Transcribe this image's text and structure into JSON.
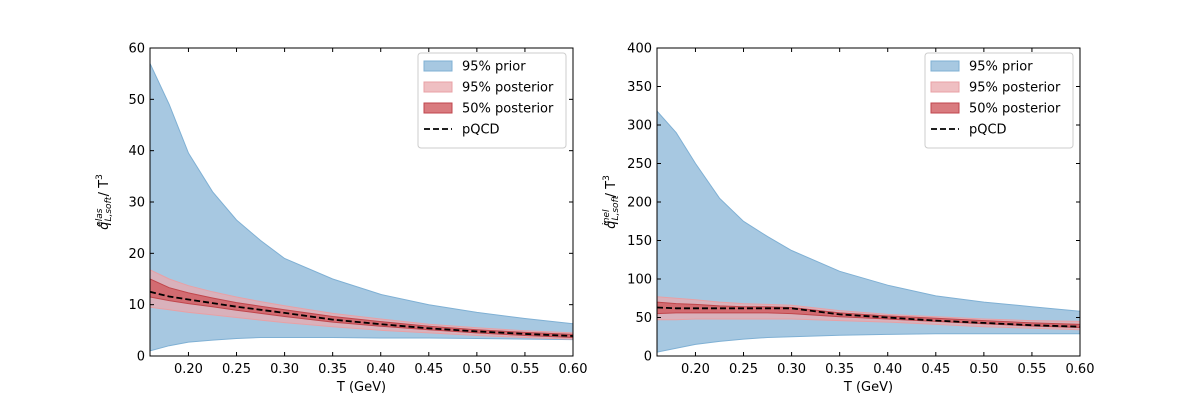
{
  "figure": {
    "panels": [
      {
        "xlabel": "T (GeV)",
        "ylabel": {
          "main": "q̂",
          "sub": "L,soft",
          "sup": "elas",
          "suffix": " / T",
          "suffix_sup": "3"
        },
        "legend": [
          {
            "label": "95% prior",
            "kind": "prior95"
          },
          {
            "label": "95% posterior",
            "kind": "post95"
          },
          {
            "label": "50% posterior",
            "kind": "post50"
          },
          {
            "label": "pQCD",
            "kind": "pqcd"
          }
        ]
      },
      {
        "xlabel": "T (GeV)",
        "ylabel": {
          "main": "q̂",
          "sub": "L,soft",
          "sup": "inel",
          "suffix": " / T",
          "suffix_sup": "3"
        },
        "legend": [
          {
            "label": "95% prior",
            "kind": "prior95"
          },
          {
            "label": "95% posterior",
            "kind": "post95"
          },
          {
            "label": "50% posterior",
            "kind": "post50"
          },
          {
            "label": "pQCD",
            "kind": "pqcd"
          }
        ]
      }
    ]
  },
  "colors": {
    "prior95_fill": "#a7c8e1",
    "prior95_edge": "#7fb0d4",
    "post95_fill": "#e9a9ad",
    "post95_edge": "#e8a0a5",
    "post50_fill": "#d05a5f",
    "post50_edge": "#c0464c",
    "pqcd": "#000000"
  },
  "chart_data": [
    {
      "type": "area",
      "xlabel": "T (GeV)",
      "ylabel": "q̂_L,soft^elas / T^3",
      "xlim": [
        0.16,
        0.6
      ],
      "ylim": [
        0,
        60
      ],
      "xticks": [
        0.2,
        0.25,
        0.3,
        0.35,
        0.4,
        0.45,
        0.5,
        0.55,
        0.6
      ],
      "yticks": [
        0,
        10,
        20,
        30,
        40,
        50,
        60
      ],
      "x": [
        0.16,
        0.18,
        0.2,
        0.225,
        0.25,
        0.275,
        0.3,
        0.35,
        0.4,
        0.45,
        0.5,
        0.55,
        0.6
      ],
      "series": [
        {
          "name": "95% prior",
          "kind": "band",
          "lower": [
            1.0,
            2.0,
            2.7,
            3.1,
            3.4,
            3.6,
            3.6,
            3.6,
            3.5,
            3.5,
            3.4,
            3.3,
            3.2
          ],
          "upper": [
            57,
            49,
            39.5,
            32,
            26.5,
            22.5,
            19,
            15,
            12,
            10,
            8.5,
            7.3,
            6.3
          ]
        },
        {
          "name": "95% posterior",
          "kind": "band",
          "lower": [
            9.5,
            9.0,
            8.5,
            8.0,
            7.5,
            7.0,
            6.5,
            5.7,
            5.0,
            4.5,
            4.0,
            3.6,
            3.3
          ],
          "upper": [
            16.8,
            15.0,
            13.7,
            12.5,
            11.5,
            10.6,
            9.8,
            8.3,
            7.2,
            6.2,
            5.5,
            4.9,
            4.5
          ]
        },
        {
          "name": "50% posterior",
          "kind": "band",
          "lower": [
            11.5,
            10.8,
            10.2,
            9.6,
            8.9,
            8.3,
            7.7,
            6.6,
            5.8,
            5.1,
            4.5,
            4.0,
            3.6
          ],
          "upper": [
            15.0,
            13.3,
            12.3,
            11.3,
            10.4,
            9.7,
            9.0,
            7.7,
            6.7,
            5.8,
            5.1,
            4.6,
            4.2
          ]
        },
        {
          "name": "pQCD",
          "kind": "line",
          "values": [
            12.5,
            11.6,
            11.0,
            10.3,
            9.6,
            9.0,
            8.4,
            7.1,
            6.2,
            5.4,
            4.8,
            4.3,
            3.9
          ]
        }
      ]
    },
    {
      "type": "area",
      "xlabel": "T (GeV)",
      "ylabel": "q̂_L,soft^inel / T^3",
      "xlim": [
        0.16,
        0.6
      ],
      "ylim": [
        0,
        400
      ],
      "xticks": [
        0.2,
        0.25,
        0.3,
        0.35,
        0.4,
        0.45,
        0.5,
        0.55,
        0.6
      ],
      "yticks": [
        0,
        50,
        100,
        150,
        200,
        250,
        300,
        350,
        400
      ],
      "x": [
        0.16,
        0.18,
        0.2,
        0.225,
        0.25,
        0.275,
        0.3,
        0.35,
        0.4,
        0.45,
        0.5,
        0.55,
        0.6
      ],
      "series": [
        {
          "name": "95% prior",
          "kind": "band",
          "lower": [
            5,
            10,
            15,
            19,
            22,
            24,
            25,
            27,
            28,
            29,
            29,
            29,
            29
          ],
          "upper": [
            318,
            290,
            250,
            205,
            175,
            155,
            137,
            110,
            92,
            78,
            70,
            64,
            58
          ]
        },
        {
          "name": "95% posterior",
          "kind": "band",
          "lower": [
            47,
            47,
            48,
            48,
            48,
            48,
            48,
            46,
            44,
            41,
            38,
            36,
            34
          ],
          "upper": [
            77,
            75,
            73,
            70,
            68,
            67,
            66,
            59,
            54,
            51,
            48,
            46,
            45
          ]
        },
        {
          "name": "50% posterior",
          "kind": "band",
          "lower": [
            55,
            56,
            56,
            56,
            56,
            56,
            55,
            51,
            48,
            45,
            42,
            39,
            37
          ],
          "upper": [
            70,
            68,
            67,
            65,
            64,
            64,
            63,
            56,
            52,
            49,
            46,
            43,
            41
          ]
        },
        {
          "name": "pQCD",
          "kind": "line",
          "values": [
            63,
            62,
            62,
            62,
            62,
            62,
            62,
            54,
            50,
            46,
            43,
            40,
            38
          ]
        }
      ]
    }
  ]
}
